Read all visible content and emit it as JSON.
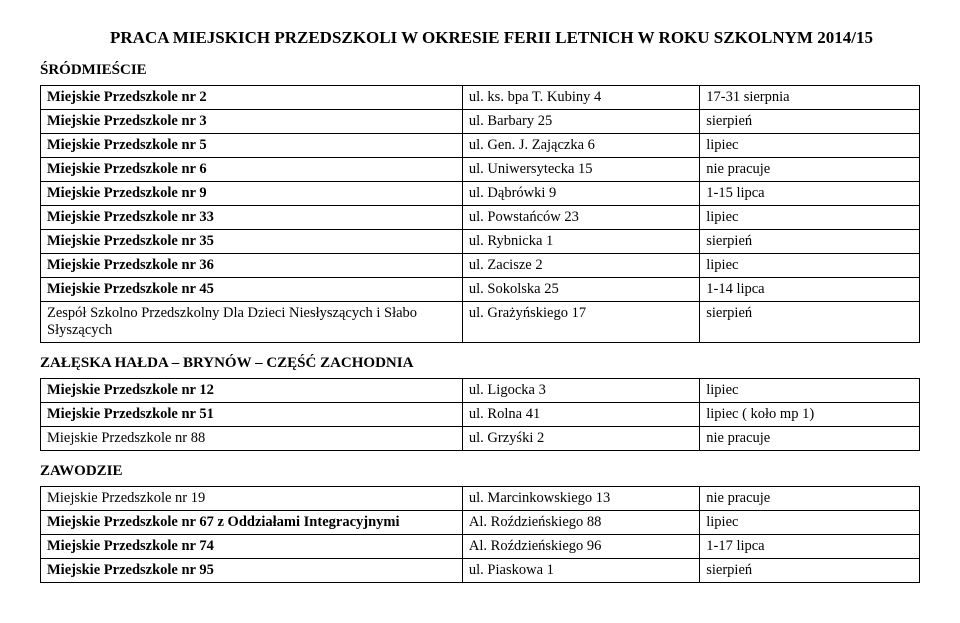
{
  "title": "PRACA MIEJSKICH PRZEDSZKOLI W OKRESIE FERII LETNICH W ROKU SZKOLNYM 2014/15",
  "sections": [
    {
      "header": "ŚRÓDMIEŚCIE",
      "rows": [
        {
          "name": "Miejskie Przedszkole nr 2",
          "addr": "ul. ks. bpa T. Kubiny 4",
          "status": "17-31 sierpnia",
          "bold": true
        },
        {
          "name": "Miejskie Przedszkole nr 3",
          "addr": "ul. Barbary 25",
          "status": "sierpień",
          "bold": true
        },
        {
          "name": "Miejskie Przedszkole nr 5",
          "addr": "ul. Gen. J. Zajączka 6",
          "status": "lipiec",
          "bold": true
        },
        {
          "name": "Miejskie Przedszkole nr 6",
          "addr": "ul. Uniwersytecka 15",
          "status": "nie pracuje",
          "bold": true
        },
        {
          "name": "Miejskie Przedszkole nr 9",
          "addr": "ul. Dąbrówki 9",
          "status": "1-15 lipca",
          "bold": true
        },
        {
          "name": "Miejskie Przedszkole nr  33",
          "addr": "ul. Powstańców 23",
          "status": "lipiec",
          "bold": true
        },
        {
          "name": "Miejskie Przedszkole nr 35",
          "addr": "ul. Rybnicka 1",
          "status": "sierpień",
          "bold": true
        },
        {
          "name": "Miejskie Przedszkole nr 36",
          "addr": "ul. Zacisze 2",
          "status": "lipiec",
          "bold": true
        },
        {
          "name": "Miejskie Przedszkole nr 45",
          "addr": "ul. Sokolska 25",
          "status": "1-14 lipca",
          "bold": true
        },
        {
          "name": "Zespół Szkolno Przedszkolny Dla Dzieci Niesłyszących i Słabo Słyszących",
          "addr": "ul. Grażyńskiego 17",
          "status": "sierpień",
          "bold": false
        }
      ]
    },
    {
      "header": "ZAŁĘSKA HAŁDA – BRYNÓW – CZĘŚĆ ZACHODNIA",
      "rows": [
        {
          "name": "Miejskie Przedszkole nr 12",
          "addr": "ul. Ligocka 3",
          "status": "lipiec",
          "bold": true
        },
        {
          "name": "Miejskie Przedszkole nr 51",
          "addr": "ul. Rolna 41",
          "status": "lipiec ( koło mp 1)",
          "bold": true
        },
        {
          "name": "Miejskie Przedszkole nr 88",
          "addr": "ul. Grzyśki 2",
          "status": "nie pracuje",
          "bold": false
        }
      ]
    },
    {
      "header": "ZAWODZIE",
      "rows": [
        {
          "name": "Miejskie Przedszkole nr 19",
          "addr": "ul. Marcinkowskiego 13",
          "status": "nie pracuje",
          "bold": false
        },
        {
          "name": "Miejskie Przedszkole nr 67 z Oddziałami Integracyjnymi",
          "addr": "Al. Roździeńskiego 88",
          "status": "lipiec",
          "bold": true
        },
        {
          "name": "Miejskie Przedszkole nr 74",
          "addr": "Al. Roździeńskiego 96",
          "status": "1-17 lipca",
          "bold": true
        },
        {
          "name": "Miejskie Przedszkole nr 95",
          "addr": "ul. Piaskowa 1",
          "status": "sierpień",
          "bold": true
        }
      ]
    }
  ]
}
